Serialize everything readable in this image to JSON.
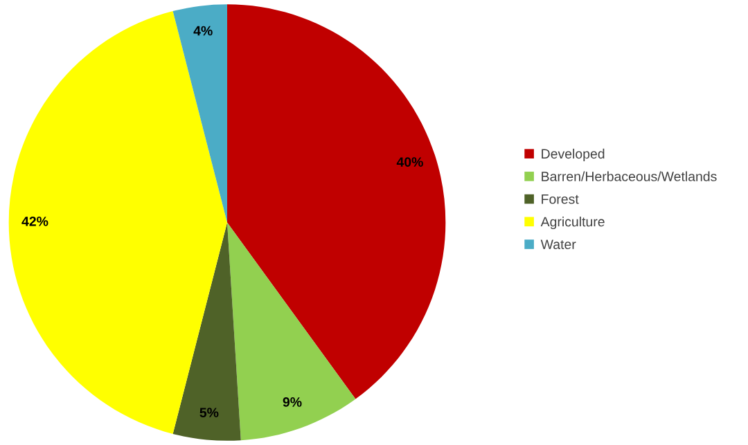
{
  "chart_data": {
    "type": "pie",
    "categories": [
      "Developed",
      "Barren/Herbaceous/Wetlands",
      "Forest",
      "Agriculture",
      "Water"
    ],
    "values": [
      40,
      9,
      5,
      42,
      4
    ],
    "colors": [
      "#c00000",
      "#92d050",
      "#4f6228",
      "#ffff00",
      "#4bacc6"
    ],
    "value_labels": [
      "40%",
      "9%",
      "5%",
      "42%",
      "4%"
    ],
    "legend": "right"
  }
}
